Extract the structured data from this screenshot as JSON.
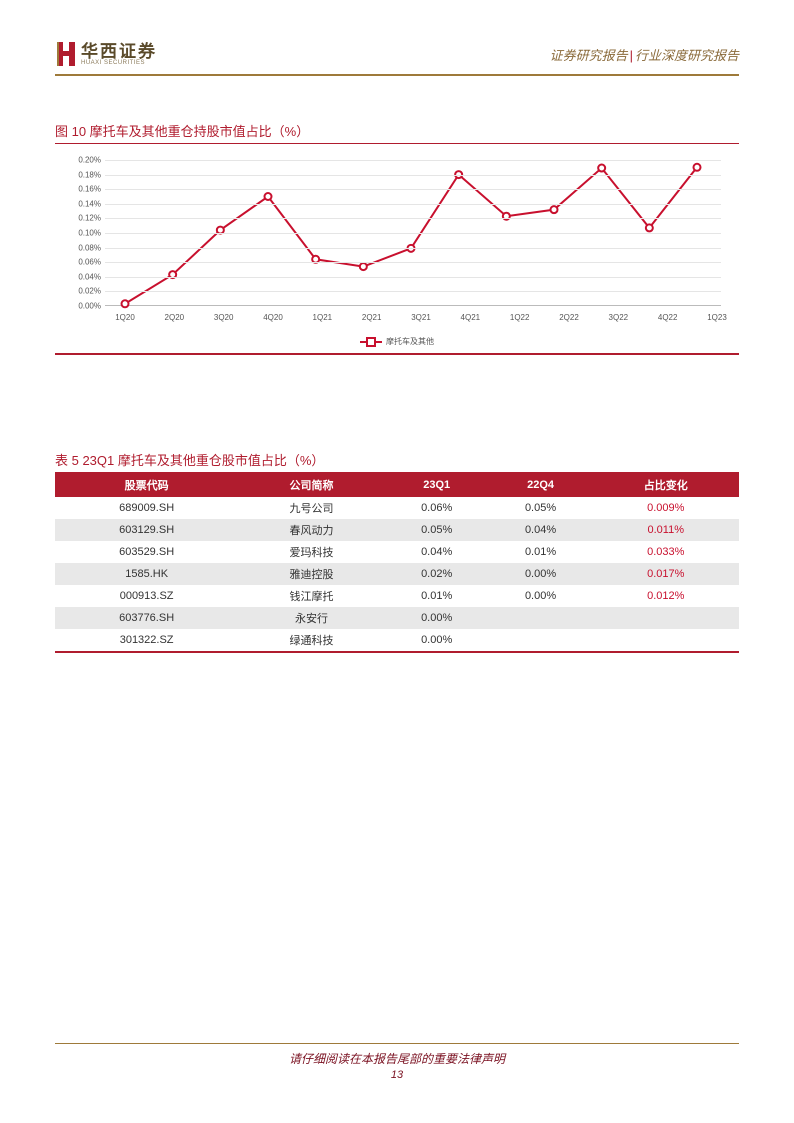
{
  "header": {
    "logo_cn": "华西证券",
    "logo_en": "HUAXI SECURITIES",
    "right_a": "证券研究报告",
    "right_b": "行业深度研究报告"
  },
  "figure": {
    "title": "图 10 摩托车及其他重仓持股市值占比（%）",
    "type": "line",
    "series_name": "摩托车及其他",
    "line_color": "#c8102e",
    "marker_fill": "#ffffff",
    "grid_color": "#e5e5e5",
    "axis_color": "#bbbbbb",
    "tick_fontsize": 8,
    "ylim": [
      0,
      0.2
    ],
    "ytick_step": 0.02,
    "yticks": [
      "0.00%",
      "0.02%",
      "0.04%",
      "0.06%",
      "0.08%",
      "0.10%",
      "0.12%",
      "0.14%",
      "0.16%",
      "0.18%",
      "0.20%"
    ],
    "categories": [
      "1Q20",
      "2Q20",
      "3Q20",
      "4Q20",
      "1Q21",
      "2Q21",
      "3Q21",
      "4Q21",
      "1Q22",
      "2Q22",
      "3Q22",
      "4Q22",
      "1Q23"
    ],
    "values": [
      0.003,
      0.043,
      0.104,
      0.15,
      0.064,
      0.054,
      0.079,
      0.18,
      0.123,
      0.132,
      0.189,
      0.107,
      0.19
    ]
  },
  "table": {
    "title": "表 5 23Q1 摩托车及其他重仓股市值占比（%）",
    "header_bg": "#b01c2e",
    "header_fg": "#ffffff",
    "row_alt_bg": "#e8e8e8",
    "pos_color": "#c8102e",
    "columns": [
      "股票代码",
      "公司简称",
      "23Q1",
      "22Q4",
      "占比变化"
    ],
    "rows": [
      {
        "code": "689009.SH",
        "name": "九号公司",
        "q1": "0.06%",
        "q4": "0.05%",
        "chg": "0.009%",
        "neg": false
      },
      {
        "code": "603129.SH",
        "name": "春风动力",
        "q1": "0.05%",
        "q4": "0.04%",
        "chg": "0.011%",
        "neg": false
      },
      {
        "code": "603529.SH",
        "name": "爱玛科技",
        "q1": "0.04%",
        "q4": "0.01%",
        "chg": "0.033%",
        "neg": false
      },
      {
        "code": "1585.HK",
        "name": "雅迪控股",
        "q1": "0.02%",
        "q4": "0.00%",
        "chg": "0.017%",
        "neg": false
      },
      {
        "code": "000913.SZ",
        "name": "钱江摩托",
        "q1": "0.01%",
        "q4": "0.00%",
        "chg": "0.012%",
        "neg": false
      },
      {
        "code": "603776.SH",
        "name": "永安行",
        "q1": "0.00%",
        "q4": "",
        "chg": "",
        "neg": false
      },
      {
        "code": "301322.SZ",
        "name": "绿通科技",
        "q1": "0.00%",
        "q4": "",
        "chg": "",
        "neg": false
      }
    ]
  },
  "footer": {
    "disclaimer": "请仔细阅读在本报告尾部的重要法律声明",
    "page": "13"
  }
}
